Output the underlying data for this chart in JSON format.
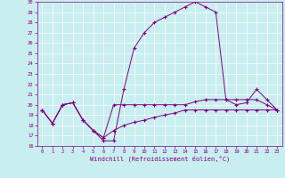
{
  "xlabel": "Windchill (Refroidissement éolien,°C)",
  "background_color": "#c8eef0",
  "grid_color": "#ffffff",
  "line_color": "#800080",
  "xlim": [
    -0.5,
    23.5
  ],
  "ylim": [
    16,
    30
  ],
  "yticks": [
    16,
    17,
    18,
    19,
    20,
    21,
    22,
    23,
    24,
    25,
    26,
    27,
    28,
    29,
    30
  ],
  "xticks": [
    0,
    1,
    2,
    3,
    4,
    5,
    6,
    7,
    8,
    9,
    10,
    11,
    12,
    13,
    14,
    15,
    16,
    17,
    18,
    19,
    20,
    21,
    22,
    23
  ],
  "x": [
    0,
    1,
    2,
    3,
    4,
    5,
    6,
    7,
    8,
    9,
    10,
    11,
    12,
    13,
    14,
    15,
    16,
    17,
    18,
    19,
    20,
    21,
    22,
    23
  ],
  "line1": [
    19.5,
    18.2,
    20.0,
    20.2,
    18.5,
    17.5,
    16.5,
    16.5,
    21.5,
    25.5,
    27.0,
    28.0,
    28.5,
    29.0,
    29.5,
    30.0,
    29.5,
    29.0,
    20.5,
    20.0,
    20.2,
    21.5,
    20.5,
    19.5
  ],
  "line2": [
    19.5,
    18.2,
    20.0,
    20.2,
    18.5,
    17.5,
    16.8,
    20.0,
    20.0,
    20.0,
    20.0,
    20.0,
    20.0,
    20.0,
    20.0,
    20.3,
    20.5,
    20.5,
    20.5,
    20.5,
    20.5,
    20.5,
    20.0,
    19.5
  ],
  "line3": [
    19.5,
    18.2,
    20.0,
    20.2,
    18.5,
    17.5,
    16.8,
    17.5,
    18.0,
    18.3,
    18.5,
    18.8,
    19.0,
    19.2,
    19.5,
    19.5,
    19.5,
    19.5,
    19.5,
    19.5,
    19.5,
    19.5,
    19.5,
    19.5
  ]
}
